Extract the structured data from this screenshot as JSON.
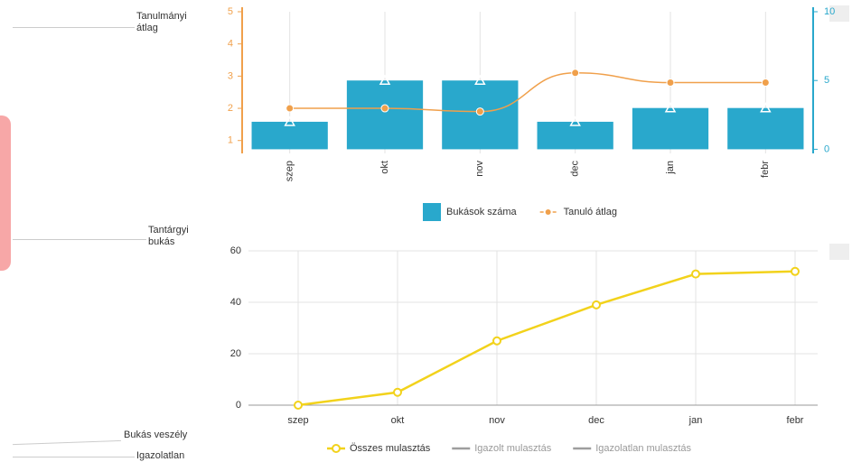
{
  "sidebar": {
    "items": [
      "Tanulmányi átlag",
      "Tantárgyi bukás",
      "Bukás veszély",
      "Igazolatlan"
    ]
  },
  "chart_data": [
    {
      "type": "combo",
      "categories": [
        "szep",
        "okt",
        "nov",
        "dec",
        "jan",
        "febr"
      ],
      "series": [
        {
          "name": "Bukások száma",
          "type": "bar",
          "color": "#29a8cc",
          "axis": "y2",
          "values": [
            2,
            5,
            5,
            2,
            3,
            3
          ]
        },
        {
          "name": "Tanuló átlag",
          "type": "line",
          "color": "#f0a04b",
          "values": [
            2.0,
            2.0,
            1.9,
            3.1,
            2.8,
            2.8
          ]
        }
      ],
      "ylim": [
        0.6,
        5
      ],
      "yticks": [
        1,
        2,
        3,
        4,
        5
      ],
      "y2lim": [
        -0.3,
        10
      ],
      "y2ticks": [
        0,
        5,
        10
      ],
      "grid": "vertical"
    },
    {
      "type": "line",
      "categories": [
        "szep",
        "okt",
        "nov",
        "dec",
        "jan",
        "febr"
      ],
      "series": [
        {
          "name": "Összes mulasztás",
          "color": "#f2d21b",
          "values": [
            0,
            5,
            25,
            39,
            51,
            52
          ]
        },
        {
          "name": "Igazolt mulasztás",
          "color": "#9e9e9e",
          "visible": false
        },
        {
          "name": "Igazolatlan mulasztás",
          "color": "#9e9e9e",
          "visible": false
        }
      ],
      "ylim": [
        0,
        60
      ],
      "yticks": [
        0,
        20,
        40,
        60
      ],
      "grid": "both"
    }
  ]
}
